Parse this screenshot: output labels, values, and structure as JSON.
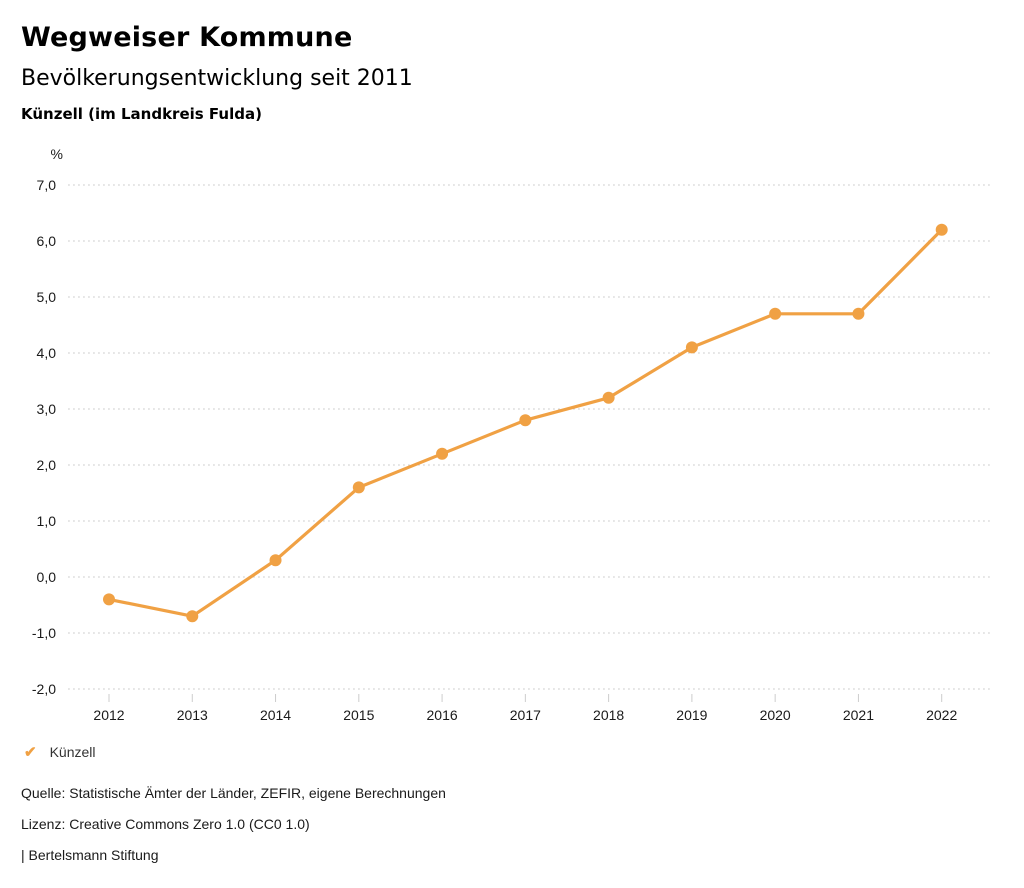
{
  "header": {
    "title": "Wegweiser Kommune",
    "subtitle": "Bevölkerungsentwicklung seit 2011",
    "region": "Künzell (im Landkreis Fulda)"
  },
  "chart_data": {
    "type": "line",
    "title": "Bevölkerungsentwicklung seit 2011",
    "subtitle": "Künzell (im Landkreis Fulda)",
    "unit": "%",
    "categories": [
      "2012",
      "2013",
      "2014",
      "2015",
      "2016",
      "2017",
      "2018",
      "2019",
      "2020",
      "2021",
      "2022"
    ],
    "series": [
      {
        "name": "Künzell",
        "color": "#F0A144",
        "values": [
          -0.4,
          -0.7,
          0.3,
          1.6,
          2.2,
          2.8,
          3.2,
          4.1,
          4.7,
          4.7,
          6.2
        ]
      }
    ],
    "ylim": [
      -2.0,
      7.0
    ],
    "ytick_values": [
      7,
      6,
      5,
      4,
      3,
      2,
      1,
      0,
      -1,
      -2
    ],
    "ytick_labels": [
      "7,0",
      "6,0",
      "5,0",
      "4,0",
      "3,0",
      "2,0",
      "1,0",
      "0,0",
      "-1,0",
      "-2,0"
    ],
    "grid": "horizontal-dotted",
    "legend_position": "bottom-left",
    "marker": "circle"
  },
  "legend": {
    "check_glyph": "✔",
    "label": "Künzell"
  },
  "footer": {
    "source": "Quelle: Statistische Ämter der Länder, ZEFIR, eigene Berechnungen",
    "license": "Lizenz: Creative Commons Zero 1.0 (CC0 1.0)",
    "attribution": "| Bertelsmann Stiftung"
  },
  "colors": {
    "accent": "#F0A144",
    "grid": "#cccccc",
    "axis_text": "#1a1a1a"
  }
}
